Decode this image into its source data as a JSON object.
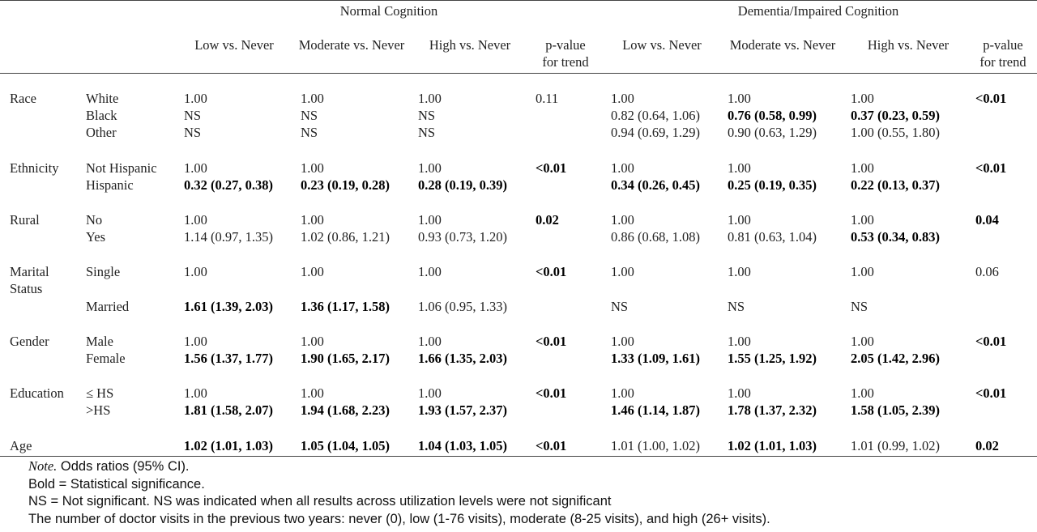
{
  "header": {
    "group_normal": "Normal Cognition",
    "group_dementia": "Dementia/Impaired Cognition",
    "columns": [
      "Low vs. Never",
      "Moderate vs. Never",
      "High vs. Never",
      "p-value for trend",
      "Low vs. Never",
      "Moderate vs. Never",
      "High vs. Never",
      "p-value for trend"
    ]
  },
  "rows": [
    {
      "var": "Race",
      "levels": [
        {
          "label": "White",
          "cells": [
            "1.00",
            "1.00",
            "1.00",
            "0.11",
            "1.00",
            "1.00",
            "1.00",
            "<0.01"
          ],
          "bold": [
            false,
            false,
            false,
            false,
            false,
            false,
            false,
            true
          ]
        },
        {
          "label": "Black",
          "cells": [
            "NS",
            "NS",
            "NS",
            "",
            "0.82 (0.64, 1.06)",
            "0.76 (0.58, 0.99)",
            "0.37 (0.23, 0.59)",
            ""
          ],
          "bold": [
            false,
            false,
            false,
            false,
            false,
            true,
            true,
            false
          ]
        },
        {
          "label": "Other",
          "cells": [
            "NS",
            "NS",
            "NS",
            "",
            "0.94 (0.69, 1.29)",
            "0.90 (0.63, 1.29)",
            "1.00 (0.55, 1.80)",
            ""
          ],
          "bold": [
            false,
            false,
            false,
            false,
            false,
            false,
            false,
            false
          ]
        }
      ]
    },
    {
      "var": "Ethnicity",
      "levels": [
        {
          "label": "Not Hispanic",
          "cells": [
            "1.00",
            "1.00",
            "1.00",
            "<0.01",
            "1.00",
            "1.00",
            "1.00",
            "<0.01"
          ],
          "bold": [
            false,
            false,
            false,
            true,
            false,
            false,
            false,
            true
          ]
        },
        {
          "label": "Hispanic",
          "cells": [
            "0.32 (0.27, 0.38)",
            "0.23 (0.19, 0.28)",
            "0.28 (0.19, 0.39)",
            "",
            "0.34 (0.26, 0.45)",
            "0.25 (0.19, 0.35)",
            "0.22 (0.13, 0.37)",
            ""
          ],
          "bold": [
            true,
            true,
            true,
            false,
            true,
            true,
            true,
            false
          ]
        }
      ]
    },
    {
      "var": "Rural",
      "levels": [
        {
          "label": "No",
          "cells": [
            "1.00",
            "1.00",
            "1.00",
            "0.02",
            "1.00",
            "1.00",
            "1.00",
            "0.04"
          ],
          "bold": [
            false,
            false,
            false,
            true,
            false,
            false,
            false,
            true
          ]
        },
        {
          "label": "Yes",
          "cells": [
            "1.14 (0.97, 1.35)",
            "1.02 (0.86, 1.21)",
            "0.93 (0.73, 1.20)",
            "",
            "0.86 (0.68, 1.08)",
            "0.81 (0.63, 1.04)",
            "0.53 (0.34, 0.83)",
            ""
          ],
          "bold": [
            false,
            false,
            false,
            false,
            false,
            false,
            true,
            false
          ]
        }
      ]
    },
    {
      "var": "Marital Status",
      "levels": [
        {
          "label": "Single",
          "cells": [
            "1.00",
            "1.00",
            "1.00",
            "<0.01",
            "1.00",
            "1.00",
            "1.00",
            "0.06"
          ],
          "bold": [
            false,
            false,
            false,
            true,
            false,
            false,
            false,
            false
          ]
        },
        {
          "label": "Married",
          "cells": [
            "1.61 (1.39, 2.03)",
            "1.36 (1.17, 1.58)",
            "1.06 (0.95, 1.33)",
            "",
            "NS",
            "NS",
            "NS",
            ""
          ],
          "bold": [
            true,
            true,
            false,
            false,
            false,
            false,
            false,
            false
          ]
        }
      ]
    },
    {
      "var": "Gender",
      "levels": [
        {
          "label": "Male",
          "cells": [
            "1.00",
            "1.00",
            "1.00",
            "<0.01",
            "1.00",
            "1.00",
            "1.00",
            "<0.01"
          ],
          "bold": [
            false,
            false,
            false,
            true,
            false,
            false,
            false,
            true
          ]
        },
        {
          "label": "Female",
          "cells": [
            "1.56 (1.37, 1.77)",
            "1.90 (1.65, 2.17)",
            "1.66 (1.35, 2.03)",
            "",
            "1.33 (1.09, 1.61)",
            "1.55 (1.25, 1.92)",
            "2.05 (1.42, 2.96)",
            ""
          ],
          "bold": [
            true,
            true,
            true,
            false,
            true,
            true,
            true,
            false
          ]
        }
      ]
    },
    {
      "var": "Education",
      "levels": [
        {
          "label": "≤ HS",
          "cells": [
            "1.00",
            "1.00",
            "1.00",
            "<0.01",
            "1.00",
            "1.00",
            "1.00",
            "<0.01"
          ],
          "bold": [
            false,
            false,
            false,
            true,
            false,
            false,
            false,
            true
          ]
        },
        {
          "label": ">HS",
          "cells": [
            "1.81 (1.58, 2.07)",
            "1.94 (1.68, 2.23)",
            "1.93 (1.57, 2.37)",
            "",
            "1.46 (1.14, 1.87)",
            "1.78 (1.37, 2.32)",
            "1.58 (1.05, 2.39)",
            ""
          ],
          "bold": [
            true,
            true,
            true,
            false,
            true,
            true,
            true,
            false
          ]
        }
      ]
    },
    {
      "var": "Age",
      "levels": [
        {
          "label": "",
          "cells": [
            "1.02 (1.01, 1.03)",
            "1.05 (1.04, 1.05)",
            "1.04 (1.03, 1.05)",
            "<0.01",
            "1.01 (1.00, 1.02)",
            "1.02 (1.01, 1.03)",
            "1.01 (0.99, 1.02)",
            "0.02"
          ],
          "bold": [
            true,
            true,
            true,
            true,
            false,
            true,
            false,
            true
          ]
        }
      ]
    }
  ],
  "notes": {
    "note_label": "Note.",
    "note_text": " Odds ratios (95% CI).",
    "bold_line": "Bold = Statistical significance.",
    "ns_line": "NS = Not significant. NS was indicated when all results across utilization levels were not significant",
    "visits_line": "The number of doctor visits in the previous two years: never (0), low (1-76 visits), moderate (8-25 visits), and high (26+ visits)."
  }
}
